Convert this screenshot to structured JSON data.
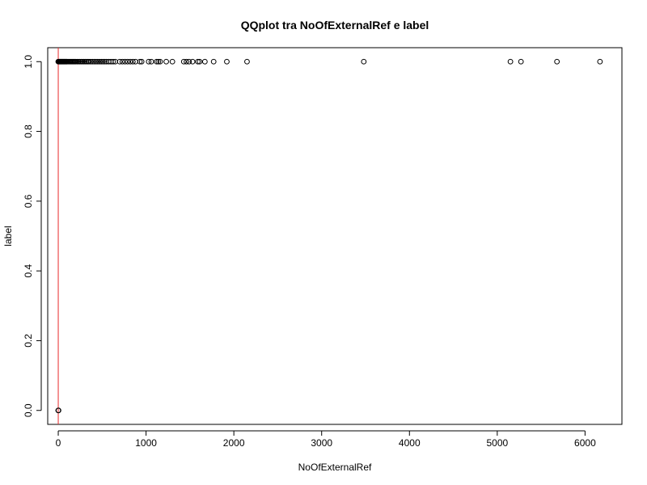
{
  "chart_data": {
    "type": "scatter",
    "title": "QQplot tra NoOfExternalRef e label",
    "xlabel": "NoOfExternalRef",
    "ylabel": "label",
    "xlim": [
      -120,
      6420
    ],
    "ylim": [
      -0.04,
      1.04
    ],
    "x_ticks": [
      0,
      1000,
      2000,
      3000,
      4000,
      5000,
      6000
    ],
    "y_ticks": [
      0.0,
      0.2,
      0.4,
      0.6,
      0.8,
      1.0
    ],
    "x_tick_labels": [
      "0",
      "1000",
      "2000",
      "3000",
      "4000",
      "5000",
      "6000"
    ],
    "y_tick_labels": [
      "0.0",
      "0.2",
      "0.4",
      "0.6",
      "0.8",
      "1.0"
    ],
    "grid": false,
    "reference_line": {
      "x": 0,
      "color": "#e8292b"
    },
    "series": [
      {
        "marker": "open-circle",
        "color": "#000000",
        "points": [
          [
            0,
            0
          ],
          [
            1,
            0
          ],
          [
            2,
            0
          ],
          [
            3,
            0
          ],
          [
            0,
            1
          ],
          [
            5,
            1
          ],
          [
            10,
            1
          ],
          [
            15,
            1
          ],
          [
            20,
            1
          ],
          [
            25,
            1
          ],
          [
            30,
            1
          ],
          [
            35,
            1
          ],
          [
            40,
            1
          ],
          [
            45,
            1
          ],
          [
            50,
            1
          ],
          [
            55,
            1
          ],
          [
            60,
            1
          ],
          [
            65,
            1
          ],
          [
            70,
            1
          ],
          [
            75,
            1
          ],
          [
            80,
            1
          ],
          [
            85,
            1
          ],
          [
            90,
            1
          ],
          [
            95,
            1
          ],
          [
            100,
            1
          ],
          [
            110,
            1
          ],
          [
            120,
            1
          ],
          [
            130,
            1
          ],
          [
            140,
            1
          ],
          [
            150,
            1
          ],
          [
            160,
            1
          ],
          [
            170,
            1
          ],
          [
            180,
            1
          ],
          [
            190,
            1
          ],
          [
            200,
            1
          ],
          [
            215,
            1
          ],
          [
            230,
            1
          ],
          [
            245,
            1
          ],
          [
            260,
            1
          ],
          [
            275,
            1
          ],
          [
            290,
            1
          ],
          [
            305,
            1
          ],
          [
            320,
            1
          ],
          [
            335,
            1
          ],
          [
            350,
            1
          ],
          [
            370,
            1
          ],
          [
            390,
            1
          ],
          [
            410,
            1
          ],
          [
            430,
            1
          ],
          [
            450,
            1
          ],
          [
            470,
            1
          ],
          [
            490,
            1
          ],
          [
            510,
            1
          ],
          [
            530,
            1
          ],
          [
            550,
            1
          ],
          [
            575,
            1
          ],
          [
            600,
            1
          ],
          [
            625,
            1
          ],
          [
            650,
            1
          ],
          [
            700,
            1
          ],
          [
            730,
            1
          ],
          [
            760,
            1
          ],
          [
            790,
            1
          ],
          [
            820,
            1
          ],
          [
            850,
            1
          ],
          [
            880,
            1
          ],
          [
            930,
            1
          ],
          [
            950,
            1
          ],
          [
            1030,
            1
          ],
          [
            1060,
            1
          ],
          [
            1120,
            1
          ],
          [
            1140,
            1
          ],
          [
            1160,
            1
          ],
          [
            1230,
            1
          ],
          [
            1300,
            1
          ],
          [
            1430,
            1
          ],
          [
            1460,
            1
          ],
          [
            1490,
            1
          ],
          [
            1530,
            1
          ],
          [
            1590,
            1
          ],
          [
            1610,
            1
          ],
          [
            1670,
            1
          ],
          [
            1770,
            1
          ],
          [
            1920,
            1
          ],
          [
            2150,
            1
          ],
          [
            3480,
            1
          ],
          [
            5150,
            1
          ],
          [
            5270,
            1
          ],
          [
            5680,
            1
          ],
          [
            6170,
            1
          ]
        ]
      }
    ]
  }
}
